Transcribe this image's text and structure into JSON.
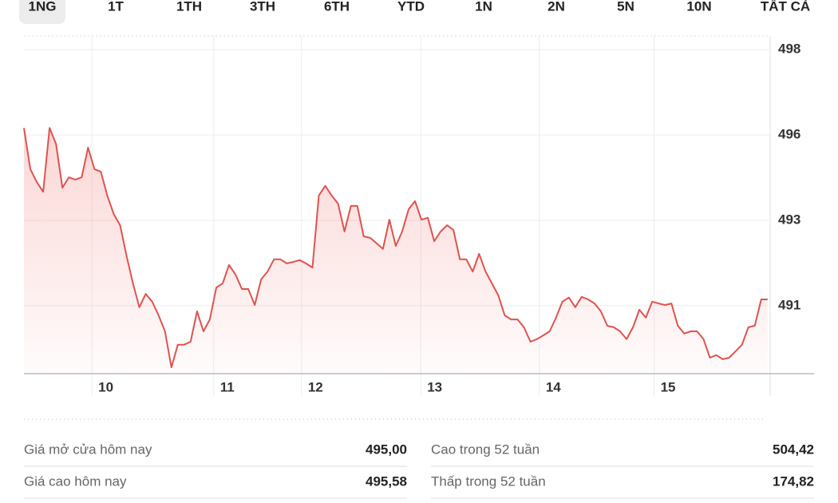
{
  "tabs": [
    "1NG",
    "1T",
    "1TH",
    "3TH",
    "6TH",
    "YTD",
    "1N",
    "2N",
    "5N",
    "10N",
    "TẤT CẢ"
  ],
  "selected_tab": "1NG",
  "chart_data": {
    "type": "line",
    "series": [
      {
        "color": "#e0524f",
        "values": [
          495.79,
          494.68,
          494.33,
          494.07,
          495.79,
          495.36,
          494.18,
          494.46,
          494.4,
          494.46,
          495.26,
          494.68,
          494.61,
          493.97,
          493.47,
          493.17,
          492.35,
          491.6,
          490.96,
          491.32,
          491.11,
          490.74,
          490.31,
          489.34,
          489.95,
          489.95,
          490.03,
          490.85,
          490.31,
          490.63,
          491.49,
          491.6,
          492.1,
          491.84,
          491.45,
          491.45,
          491.02,
          491.71,
          491.92,
          492.25,
          492.25,
          492.14,
          492.18,
          492.23,
          492.14,
          492.03,
          493.97,
          494.23,
          493.97,
          493.75,
          493.0,
          493.69,
          493.69,
          492.87,
          492.83,
          492.68,
          492.53,
          493.32,
          492.61,
          493.0,
          493.6,
          493.82,
          493.32,
          493.37,
          492.74,
          493.0,
          493.17,
          493.04,
          492.25,
          492.25,
          491.92,
          492.4,
          491.92,
          491.6,
          491.28,
          490.74,
          490.63,
          490.63,
          490.42,
          490.03,
          490.1,
          490.2,
          490.31,
          490.68,
          491.11,
          491.22,
          490.96,
          491.24,
          491.17,
          491.06,
          490.85,
          490.46,
          490.42,
          490.31,
          490.1,
          490.42,
          490.89,
          490.68,
          491.11,
          491.06,
          491.02,
          491.06,
          490.46,
          490.25,
          490.31,
          490.31,
          490.1,
          489.6,
          489.67,
          489.56,
          489.6,
          489.77,
          489.95,
          490.42,
          490.46,
          491.17,
          491.17
        ]
      }
    ],
    "xlim": [
      0,
      116.4
    ],
    "xticks": [
      {
        "value": 10.6,
        "label": "10"
      },
      {
        "value": 29.6,
        "label": "11"
      },
      {
        "value": 43.3,
        "label": "12"
      },
      {
        "value": 61.9,
        "label": "13"
      },
      {
        "value": 80.4,
        "label": "14"
      },
      {
        "value": 98.3,
        "label": "15"
      }
    ],
    "ylim": [
      489.17,
      498.27
    ],
    "yticks": [
      {
        "value": 497.9,
        "label": "498"
      },
      {
        "value": 495.6,
        "label": "496"
      },
      {
        "value": 493.3,
        "label": "493"
      },
      {
        "value": 491.0,
        "label": "491"
      }
    ],
    "grid": true
  },
  "stats": [
    [
      {
        "label": "Giá mở cửa hôm nay",
        "value": "495,00"
      },
      {
        "label": "Cao trong 52 tuần",
        "value": "504,42"
      }
    ],
    [
      {
        "label": "Giá cao hôm nay",
        "value": "495,58"
      },
      {
        "label": "Thấp trong 52 tuần",
        "value": "174,82"
      }
    ]
  ]
}
